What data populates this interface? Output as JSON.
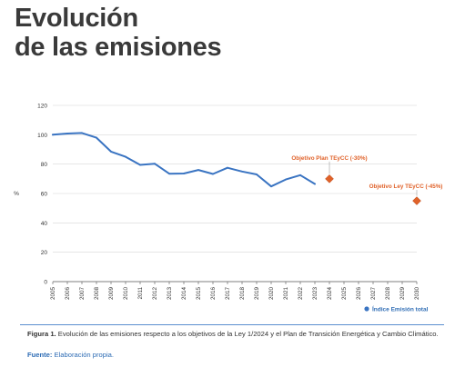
{
  "heading": {
    "line1": "Evolución",
    "line2": "de las emisiones"
  },
  "chart_data": {
    "type": "line",
    "ylabel": "%",
    "ylim": [
      0,
      120
    ],
    "yticks": [
      0,
      20,
      40,
      60,
      80,
      100,
      120
    ],
    "xlim": [
      2005,
      2030
    ],
    "x_categories": [
      "2005",
      "2006",
      "2007",
      "2008",
      "2009",
      "2010",
      "2011",
      "2012",
      "2013",
      "2014",
      "2015",
      "2016",
      "2017",
      "2018",
      "2019",
      "2020",
      "2021",
      "2022",
      "2023",
      "2024",
      "2025",
      "2026",
      "2027",
      "2028",
      "2029",
      "2030"
    ],
    "series": [
      {
        "name": "Índice Emisión total",
        "color": "#3a74c2",
        "x": [
          2005,
          2006,
          2007,
          2008,
          2009,
          2010,
          2011,
          2012,
          2013,
          2014,
          2015,
          2016,
          2017,
          2018,
          2019,
          2020,
          2021,
          2022,
          2023
        ],
        "values": [
          100,
          100.8,
          101.2,
          98,
          88.5,
          85,
          79.5,
          80.3,
          73.5,
          73.6,
          76,
          73.3,
          77.5,
          75,
          73,
          64.8,
          69.5,
          72.5,
          66.5
        ]
      }
    ],
    "targets": [
      {
        "label": "Objetivo Plan TEyCC (-30%)",
        "x": 2024,
        "y": 70,
        "color": "#e0622a"
      },
      {
        "label": "Objetivo Ley TEyCC (-45%)",
        "x": 2030,
        "y": 55,
        "color": "#e0622a"
      }
    ],
    "legend_position": "bottom-right",
    "grid": "horizontal"
  },
  "caption": {
    "figure_label": "Figura 1.",
    "text": " Evolución de las emisiones respecto a los objetivos de la Ley 1/2024 y el Plan de Transición Energética y Cambio Climático."
  },
  "source": {
    "label": "Fuente:",
    "text": " Elaboración propia."
  },
  "colors": {
    "grid": "#d6d6d6",
    "axis": "#555555",
    "heading": "#3a3a3a",
    "rule": "#5b8fd0"
  }
}
